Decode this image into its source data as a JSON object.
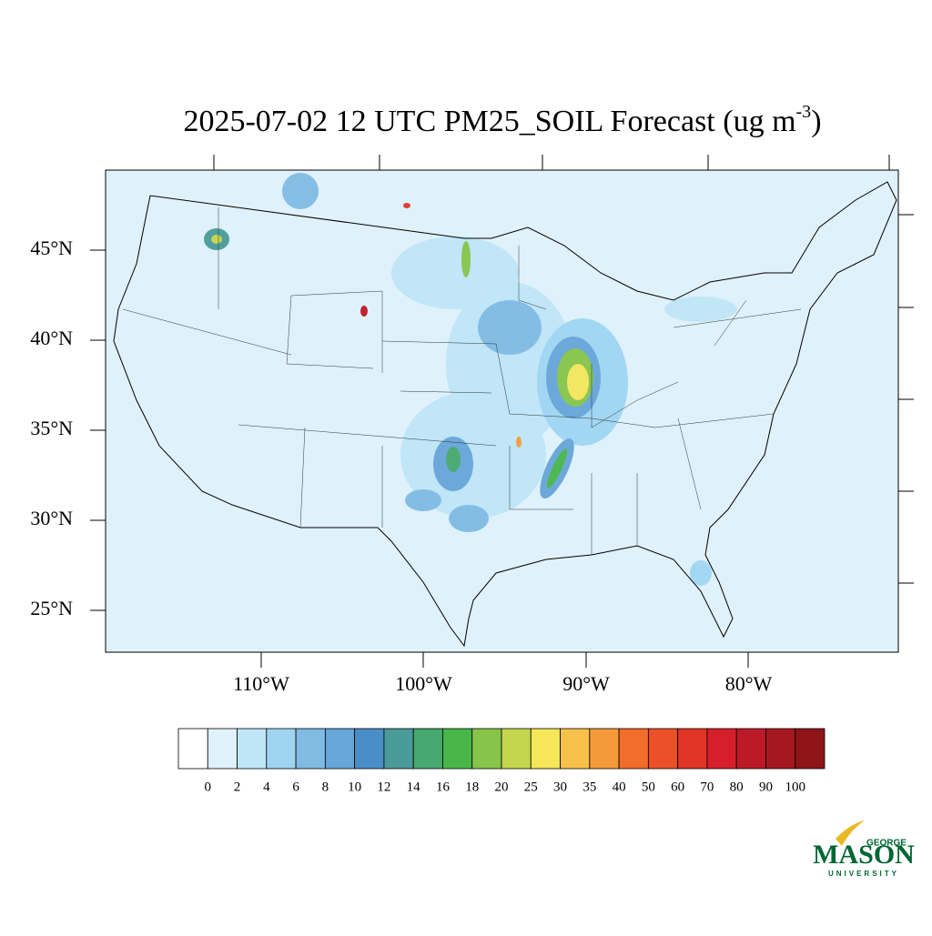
{
  "title": {
    "text": "2025-07-02 12 UTC PM25_SOIL Forecast (ug m",
    "superscript": "-3",
    "close": ")"
  },
  "map": {
    "lat_labels": [
      "45°N",
      "40°N",
      "35°N",
      "30°N",
      "25°N"
    ],
    "lon_labels": [
      "110°W",
      "100°W",
      "90°W",
      "80°W"
    ],
    "background": "#dff1fb"
  },
  "colorbar": {
    "levels": [
      0,
      2,
      4,
      6,
      8,
      10,
      12,
      14,
      16,
      18,
      20,
      25,
      30,
      35,
      40,
      50,
      60,
      70,
      80,
      90,
      100
    ],
    "colors": [
      "#ffffff",
      "#dff1fb",
      "#bfe6f7",
      "#9ed6f2",
      "#80bbe3",
      "#66a6d9",
      "#4a8ec8",
      "#4a9a9a",
      "#46a86e",
      "#49b64a",
      "#86c44a",
      "#c3d64d",
      "#f5e65a",
      "#f7c04a",
      "#f59a3a",
      "#f26c2a",
      "#eb5028",
      "#e03426",
      "#d61f2a",
      "#bd1a28",
      "#a6181f",
      "#8f1518"
    ]
  },
  "logo": {
    "top": "GEORGE",
    "main": "MASON",
    "bottom": "UNIVERSITY"
  }
}
